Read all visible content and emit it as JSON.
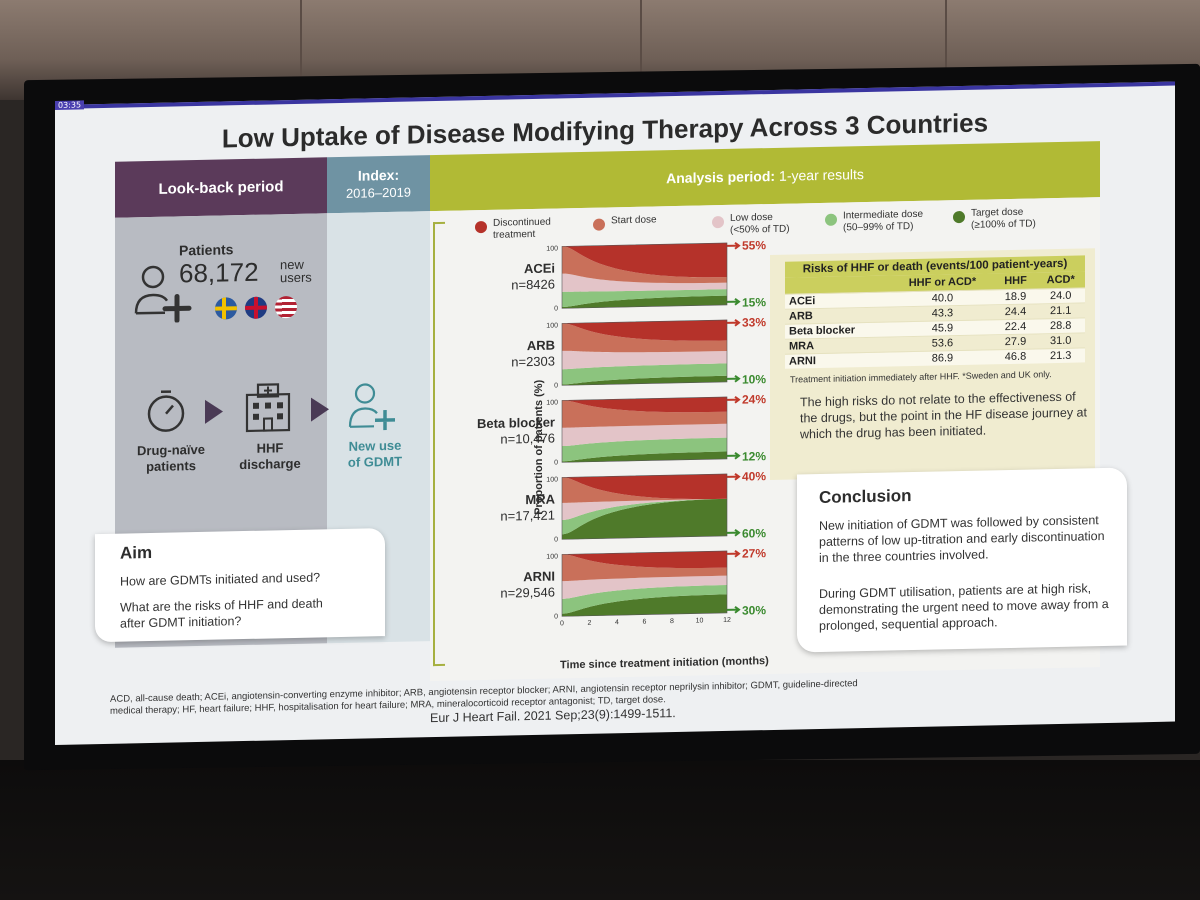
{
  "slide": {
    "timestamp": "03:35",
    "title": "Low Uptake of Disease Modifying Therapy Across 3 Countries",
    "bands": {
      "lookback": "Look-back period",
      "index_title": "Index:",
      "index_years": "2016–2019",
      "analysis_bold": "Analysis period:",
      "analysis_normal": "1-year results"
    },
    "patients": {
      "title": "Patients",
      "count": "68,172",
      "new": "new",
      "users": "users"
    },
    "flow": {
      "drug_naive_line1": "Drug-naïve",
      "drug_naive_line2": "patients",
      "hhf_line1": "HHF",
      "hhf_line2": "discharge",
      "new_use_line1": "New use",
      "new_use_line2": "of GDMT"
    },
    "aim": {
      "title": "Aim",
      "q1": "How are GDMTs initiated and used?",
      "q2_line1": "What are the risks of HHF and death",
      "q2_line2": "after GDMT initiation?"
    },
    "legend": [
      {
        "line1": "Discontinued",
        "line2": "treatment",
        "color": "#b5322a"
      },
      {
        "line1": "Start dose",
        "line2": "",
        "color": "#c9705a"
      },
      {
        "line1": "Low dose",
        "line2": "(<50% of TD)",
        "color": "#e3c4c8"
      },
      {
        "line1": "Intermediate dose",
        "line2": "(50–99% of TD)",
        "color": "#8cc47e"
      },
      {
        "line1": "Target dose",
        "line2": "(≥100% of TD)",
        "color": "#4f7a2a"
      }
    ],
    "chart_axis": {
      "ylabel": "Proportion of patients (%)",
      "xlabel": "Time since treatment initiation (months)",
      "y0": "0",
      "y100": "100",
      "xticks": [
        "0",
        "2",
        "4",
        "6",
        "8",
        "10",
        "12"
      ]
    },
    "risk_table": {
      "caption": "Risks of HHF or death (events/100 patient-years)",
      "headers": [
        "",
        "HHF or ACD*",
        "HHF",
        "ACD*"
      ],
      "rows": [
        [
          "ACEi",
          "40.0",
          "18.9",
          "24.0"
        ],
        [
          "ARB",
          "43.3",
          "24.4",
          "21.1"
        ],
        [
          "Beta blocker",
          "45.9",
          "22.4",
          "28.8"
        ],
        [
          "MRA",
          "53.6",
          "27.9",
          "31.0"
        ],
        [
          "ARNI",
          "86.9",
          "46.8",
          "21.3"
        ]
      ],
      "note": "Treatment initiation immediately after HHF. *Sweden and UK only.",
      "text": "The high risks do not relate to the effectiveness of the drugs, but the point in the HF disease journey at which the drug has been initiated."
    },
    "conclusion": {
      "title": "Conclusion",
      "p1": "New initiation of GDMT was followed by consistent patterns of low up-titration and early discontinuation in the three countries involved.",
      "p2": "During GDMT utilisation, patients are at high risk, demonstrating the urgent need to move away from a prolonged, sequential approach."
    },
    "footnote": "ACD, all-cause death; ACEi, angiotensin-converting enzyme inhibitor; ARB, angiotensin receptor blocker; ARNI, angiotensin receptor neprilysin inhibitor; GDMT, guideline-directed medical therapy; HF, heart failure; HHF, hospitalisation for heart failure; MRA, mineralocorticoid receptor antagonist; TD, target dose.",
    "citation": "Eur J Heart Fail. 2021 Sep;23(9):1499-1511."
  },
  "chart_data": [
    {
      "type": "area",
      "drug": "ACEi",
      "n": "n=8426",
      "discontinued_end": "55%",
      "target_end": "15%",
      "discontinued_end_value": 55,
      "target_end_value": 15
    },
    {
      "type": "area",
      "drug": "ARB",
      "n": "n=2303",
      "discontinued_end": "33%",
      "target_end": "10%",
      "discontinued_end_value": 33,
      "target_end_value": 10
    },
    {
      "type": "area",
      "drug": "Beta blocker",
      "n": "n=10,476",
      "discontinued_end": "24%",
      "target_end": "12%",
      "discontinued_end_value": 24,
      "target_end_value": 12
    },
    {
      "type": "area",
      "drug": "MRA",
      "n": "n=17,421",
      "discontinued_end": "40%",
      "target_end": "60%",
      "discontinued_end_value": 40,
      "target_end_value": 60
    },
    {
      "type": "area",
      "drug": "ARNI",
      "n": "n=29,546",
      "discontinued_end": "27%",
      "target_end": "30%",
      "discontinued_end_value": 27,
      "target_end_value": 30
    }
  ]
}
